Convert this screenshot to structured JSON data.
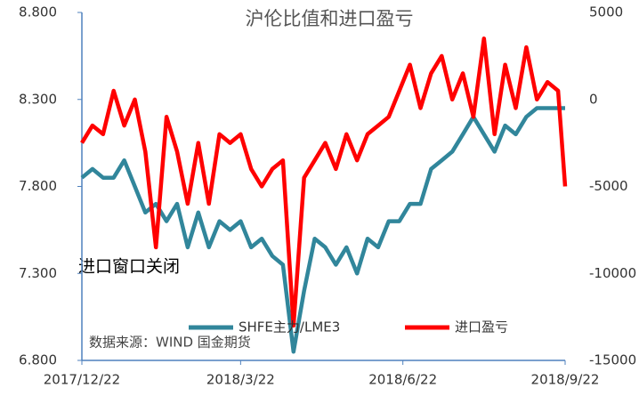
{
  "chart_data": {
    "type": "line",
    "title": "沪伦比值和进口盈亏",
    "annotations": [
      "进口窗口关闭",
      "数据来源：WIND 国金期货"
    ],
    "x": [
      "2017/12/22",
      "2017/12/28",
      "2018/1/3",
      "2018/1/9",
      "2018/1/15",
      "2018/1/21",
      "2018/1/27",
      "2018/2/2",
      "2018/2/8",
      "2018/2/14",
      "2018/2/20",
      "2018/2/26",
      "2018/3/4",
      "2018/3/10",
      "2018/3/16",
      "2018/3/22",
      "2018/3/28",
      "2018/4/3",
      "2018/4/9",
      "2018/4/15",
      "2018/4/21",
      "2018/4/27",
      "2018/5/3",
      "2018/5/9",
      "2018/5/15",
      "2018/5/21",
      "2018/5/27",
      "2018/6/2",
      "2018/6/8",
      "2018/6/14",
      "2018/6/20",
      "2018/6/26",
      "2018/7/2",
      "2018/7/8",
      "2018/7/14",
      "2018/7/20",
      "2018/7/26",
      "2018/8/1",
      "2018/8/7",
      "2018/8/13",
      "2018/8/19",
      "2018/8/25",
      "2018/8/31",
      "2018/9/6",
      "2018/9/12",
      "2018/9/18",
      "2018/9/22"
    ],
    "xticks": [
      "2017/12/22",
      "2018/3/22",
      "2018/6/22",
      "2018/9/22"
    ],
    "series": [
      {
        "name": "SHFE主力/LME3",
        "color": "#31869b",
        "axis": "y",
        "values": [
          7.85,
          7.9,
          7.85,
          7.85,
          7.95,
          7.8,
          7.65,
          7.7,
          7.6,
          7.7,
          7.45,
          7.65,
          7.45,
          7.6,
          7.55,
          7.6,
          7.45,
          7.5,
          7.4,
          7.35,
          6.85,
          7.2,
          7.5,
          7.45,
          7.35,
          7.45,
          7.3,
          7.5,
          7.45,
          7.6,
          7.6,
          7.7,
          7.7,
          7.9,
          7.95,
          8.0,
          8.1,
          8.2,
          8.1,
          8.0,
          8.15,
          8.1,
          8.2,
          8.25,
          8.25,
          8.25,
          8.25
        ]
      },
      {
        "name": "进口盈亏",
        "color": "#ff0000",
        "axis": "y2",
        "values": [
          -2500,
          -1500,
          -2000,
          500,
          -1500,
          0,
          -3000,
          -8500,
          -1000,
          -3000,
          -6000,
          -2500,
          -6000,
          -2000,
          -2500,
          -2000,
          -4000,
          -5000,
          -4000,
          -3500,
          -13000,
          -4500,
          -3500,
          -2500,
          -4000,
          -2000,
          -3500,
          -2000,
          -1500,
          -1000,
          500,
          2000,
          -500,
          1500,
          2500,
          0,
          1500,
          -1000,
          3500,
          -2000,
          2000,
          -500,
          3000,
          0,
          1000,
          500,
          -5000
        ]
      }
    ],
    "ylim": [
      6.8,
      8.8
    ],
    "yticks": [
      {
        "value": 6.8,
        "label": "6.800"
      },
      {
        "value": 7.3,
        "label": "7.300"
      },
      {
        "value": 7.8,
        "label": "7.800"
      },
      {
        "value": 8.3,
        "label": "8.300"
      },
      {
        "value": 8.8,
        "label": "8.800"
      }
    ],
    "y2lim": [
      -15000,
      5000
    ],
    "y2ticks": [
      -15000,
      -10000,
      -5000,
      0,
      5000
    ],
    "grid": false
  }
}
